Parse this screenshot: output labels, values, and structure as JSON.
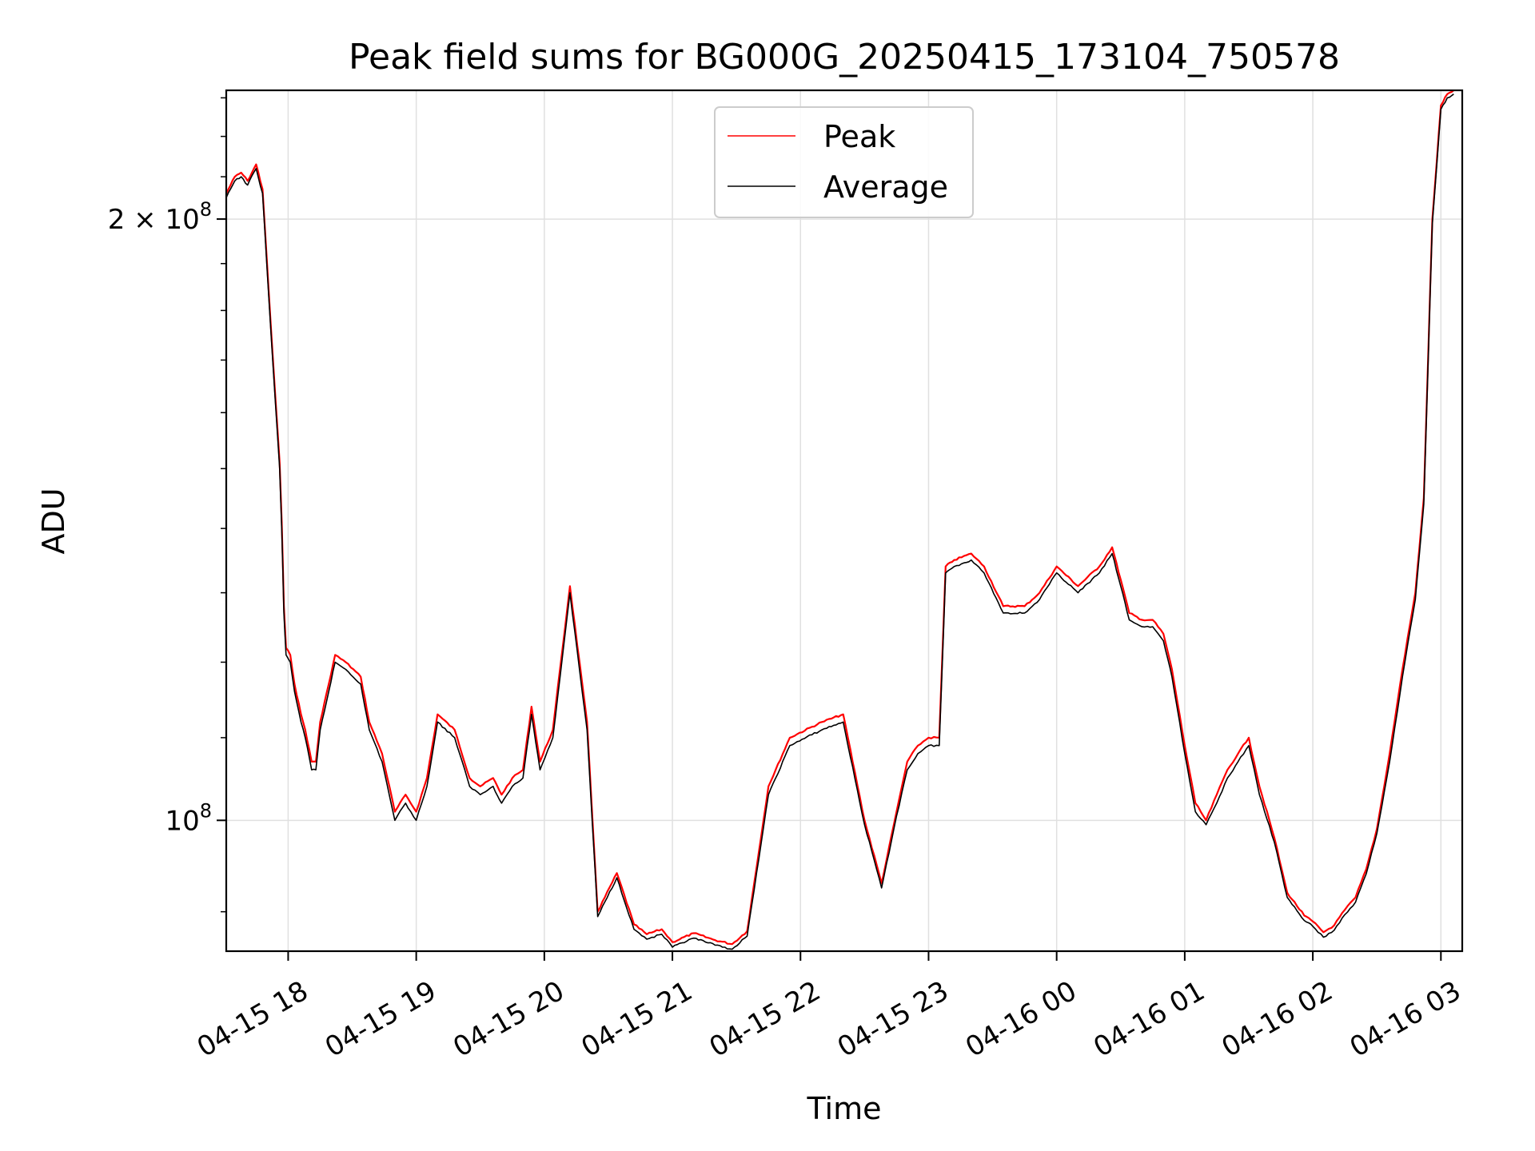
{
  "chart_data": {
    "type": "line",
    "title": "Peak field sums for BG000G_20250415_173104_750578",
    "xlabel": "Time",
    "ylabel": "ADU",
    "y_scale": "log",
    "ylim": [
      86000000,
      232000000
    ],
    "xlim": [
      "2025-04-15 17:31",
      "2025-04-16 03:10"
    ],
    "grid": true,
    "legend_position": "top-center",
    "x_ticks": [
      {
        "at": "2025-04-15 18:00",
        "label": "04-15 18"
      },
      {
        "at": "2025-04-15 19:00",
        "label": "04-15 19"
      },
      {
        "at": "2025-04-15 20:00",
        "label": "04-15 20"
      },
      {
        "at": "2025-04-15 21:00",
        "label": "04-15 21"
      },
      {
        "at": "2025-04-15 22:00",
        "label": "04-15 22"
      },
      {
        "at": "2025-04-15 23:00",
        "label": "04-15 23"
      },
      {
        "at": "2025-04-16 00:00",
        "label": "04-16 00"
      },
      {
        "at": "2025-04-16 01:00",
        "label": "04-16 01"
      },
      {
        "at": "2025-04-16 02:00",
        "label": "04-16 02"
      },
      {
        "at": "2025-04-16 03:00",
        "label": "04-16 03"
      }
    ],
    "y_ticks": [
      {
        "value": 100000000,
        "base": "10",
        "exp": "8",
        "coef": ""
      },
      {
        "value": 200000000,
        "base": "10",
        "exp": "8",
        "coef": "2 ×"
      }
    ],
    "x": [
      "2025-04-15 17:31",
      "2025-04-15 17:35",
      "2025-04-15 17:38",
      "2025-04-15 17:41",
      "2025-04-15 17:45",
      "2025-04-15 17:48",
      "2025-04-15 17:52",
      "2025-04-15 17:56",
      "2025-04-15 17:57",
      "2025-04-15 17:58",
      "2025-04-15 17:59",
      "2025-04-15 18:01",
      "2025-04-15 18:03",
      "2025-04-15 18:06",
      "2025-04-15 18:08",
      "2025-04-15 18:11",
      "2025-04-15 18:13",
      "2025-04-15 18:15",
      "2025-04-15 18:19",
      "2025-04-15 18:22",
      "2025-04-15 18:27",
      "2025-04-15 18:34",
      "2025-04-15 18:38",
      "2025-04-15 18:44",
      "2025-04-15 18:50",
      "2025-04-15 18:55",
      "2025-04-15 19:00",
      "2025-04-15 19:05",
      "2025-04-15 19:10",
      "2025-04-15 19:18",
      "2025-04-15 19:25",
      "2025-04-15 19:30",
      "2025-04-15 19:36",
      "2025-04-15 19:40",
      "2025-04-15 19:45",
      "2025-04-15 19:50",
      "2025-04-15 19:54",
      "2025-04-15 19:58",
      "2025-04-15 20:04",
      "2025-04-15 20:12",
      "2025-04-15 20:20",
      "2025-04-15 20:25",
      "2025-04-15 20:34",
      "2025-04-15 20:42",
      "2025-04-15 20:48",
      "2025-04-15 20:55",
      "2025-04-15 21:00",
      "2025-04-15 21:10",
      "2025-04-15 21:20",
      "2025-04-15 21:28",
      "2025-04-15 21:35",
      "2025-04-15 21:45",
      "2025-04-15 21:55",
      "2025-04-15 22:10",
      "2025-04-15 22:20",
      "2025-04-15 22:30",
      "2025-04-15 22:38",
      "2025-04-15 22:45",
      "2025-04-15 22:50",
      "2025-04-15 22:55",
      "2025-04-15 23:00",
      "2025-04-15 23:05",
      "2025-04-15 23:08",
      "2025-04-15 23:12",
      "2025-04-15 23:20",
      "2025-04-15 23:26",
      "2025-04-15 23:35",
      "2025-04-15 23:45",
      "2025-04-15 23:52",
      "2025-04-16 00:00",
      "2025-04-16 00:10",
      "2025-04-16 00:20",
      "2025-04-16 00:26",
      "2025-04-16 00:30",
      "2025-04-16 00:34",
      "2025-04-16 00:40",
      "2025-04-16 00:45",
      "2025-04-16 00:50",
      "2025-04-16 00:54",
      "2025-04-16 01:00",
      "2025-04-16 01:05",
      "2025-04-16 01:10",
      "2025-04-16 01:15",
      "2025-04-16 01:20",
      "2025-04-16 01:25",
      "2025-04-16 01:30",
      "2025-04-16 01:35",
      "2025-04-16 01:42",
      "2025-04-16 01:48",
      "2025-04-16 01:56",
      "2025-04-16 02:00",
      "2025-04-16 02:05",
      "2025-04-16 02:10",
      "2025-04-16 02:15",
      "2025-04-16 02:20",
      "2025-04-16 02:25",
      "2025-04-16 02:30",
      "2025-04-16 02:36",
      "2025-04-16 02:42",
      "2025-04-16 02:48",
      "2025-04-16 02:52",
      "2025-04-16 02:56",
      "2025-04-16 03:00",
      "2025-04-16 03:03",
      "2025-04-16 03:06"
    ],
    "series": [
      {
        "name": "Peak",
        "color": "#ff0000",
        "values": [
          206,
          210,
          211,
          209,
          213,
          207,
          176,
          151,
          141,
          128,
          122,
          121,
          117,
          113,
          111,
          107,
          107,
          112,
          117,
          121,
          120,
          118,
          112,
          108,
          101,
          103,
          101,
          105,
          113,
          111,
          105,
          104,
          105,
          103,
          105,
          106,
          114,
          107,
          111,
          131,
          112,
          90.0,
          94.1,
          88.7,
          87.7,
          88.2,
          86.9,
          87.8,
          87.1,
          86.7,
          88.0,
          104,
          110,
          112,
          113,
          100,
          93,
          101,
          107,
          109,
          110,
          110,
          134,
          135,
          136,
          134,
          128,
          128,
          130,
          134,
          131,
          134,
          137,
          132,
          127,
          126,
          126,
          124,
          119,
          109,
          102,
          100,
          103,
          106,
          108,
          110,
          104,
          98,
          92,
          89.6,
          89.0,
          87.9,
          88.6,
          90.2,
          91.5,
          94.5,
          99,
          108,
          119,
          130,
          145,
          200,
          228,
          231,
          232
        ]
      },
      {
        "name": "Average",
        "color": "#000000",
        "values": [
          205,
          209,
          210,
          208,
          212,
          206,
          175,
          150,
          140,
          127,
          121,
          120,
          116,
          112,
          110,
          106,
          106,
          111,
          116,
          120,
          119,
          117,
          111,
          107,
          100,
          102,
          100,
          104,
          112,
          110,
          104,
          103,
          104,
          102,
          104,
          105,
          113,
          106,
          110,
          130,
          111,
          89.5,
          93.6,
          88.2,
          87.2,
          87.7,
          86.4,
          87.3,
          86.6,
          86.2,
          87.5,
          103,
          109,
          111,
          112,
          99.5,
          92.5,
          100.5,
          106,
          108,
          109,
          109,
          133,
          134,
          135,
          133,
          127,
          127,
          129,
          133,
          130,
          133,
          136,
          131,
          126,
          125,
          125,
          123,
          118,
          108,
          101,
          99.5,
          102,
          105,
          107,
          109,
          103,
          97.5,
          91.5,
          89.1,
          88.5,
          87.4,
          88.1,
          89.7,
          91.0,
          94.0,
          98.5,
          107,
          118,
          129,
          144,
          199,
          227,
          230,
          231
        ]
      }
    ],
    "value_multiplier": 1000000,
    "legend": [
      {
        "label": "Peak",
        "color": "#ff0000"
      },
      {
        "label": "Average",
        "color": "#000000"
      }
    ]
  }
}
